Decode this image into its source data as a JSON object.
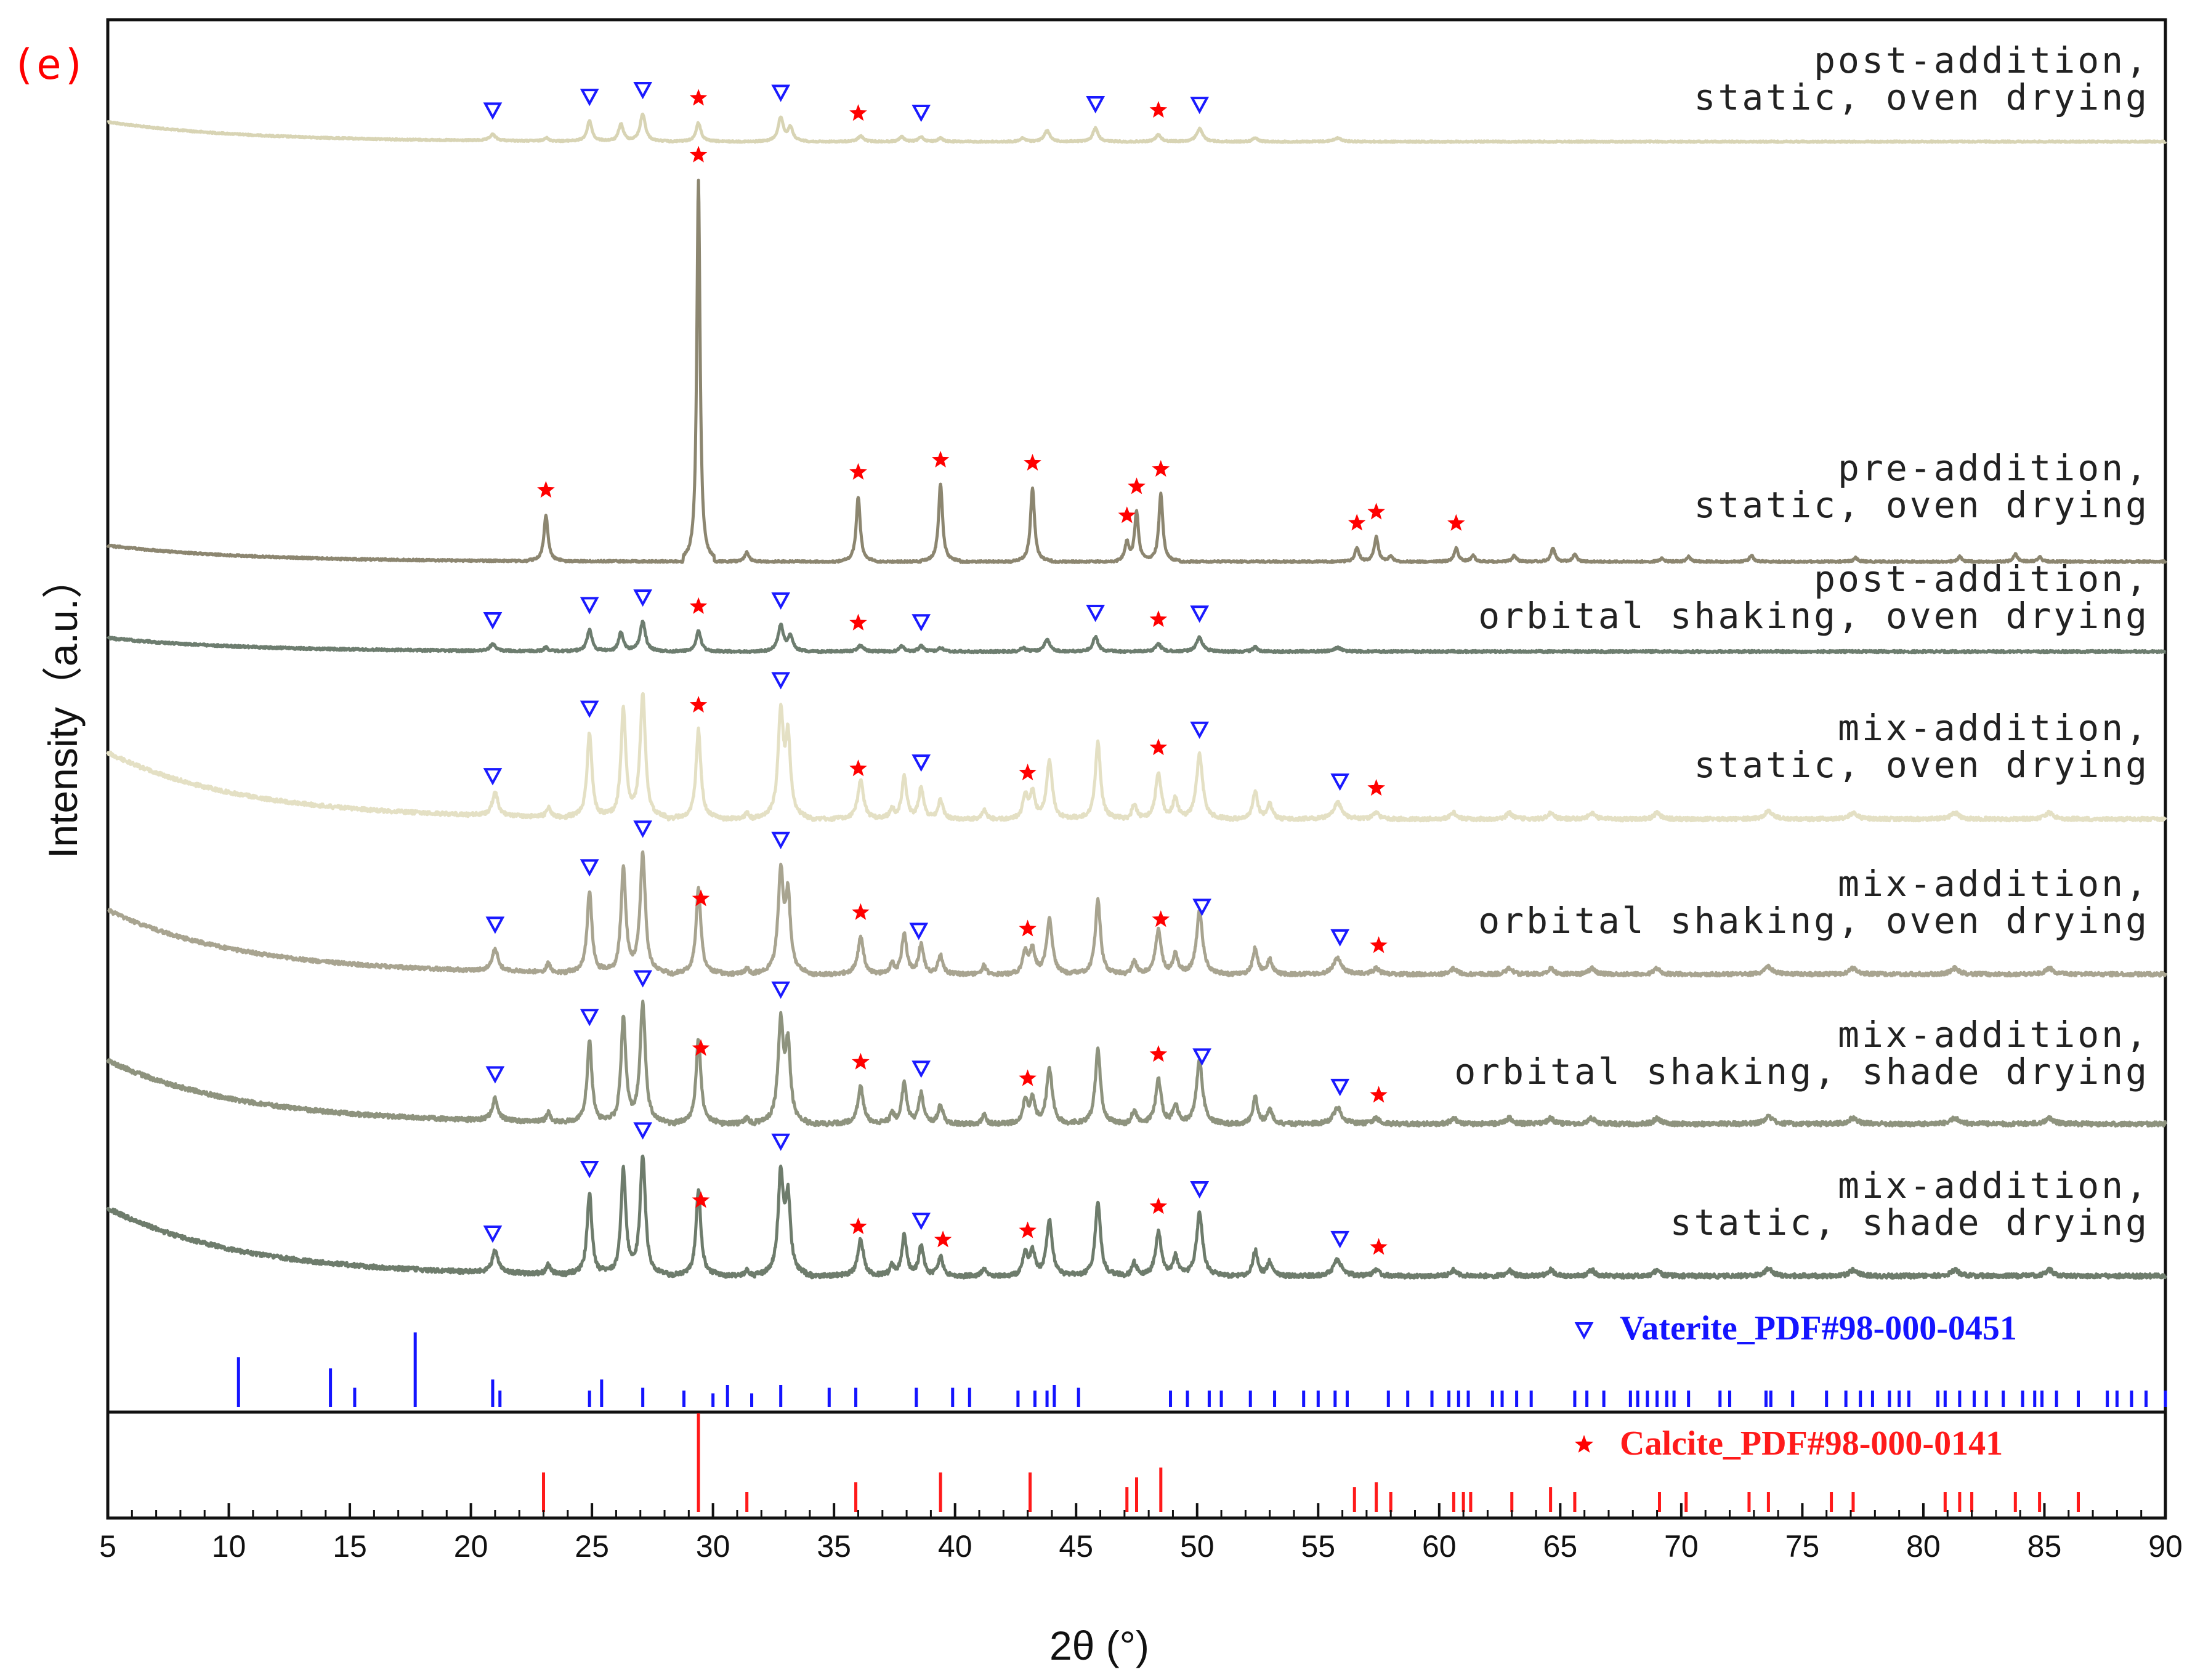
{
  "panel_label": "(e)",
  "chart_data": {
    "type": "line",
    "title": "",
    "xlabel": "2θ (°)",
    "ylabel": "Intensity（a.u.）",
    "xlim": [
      5,
      90
    ],
    "x_ticks": [
      5,
      10,
      15,
      20,
      25,
      30,
      35,
      40,
      45,
      50,
      55,
      60,
      65,
      70,
      75,
      80,
      85,
      90
    ],
    "series": [
      {
        "name": "post-addition, static, oven drying",
        "label_line1": "post-addition,",
        "label_line2": "static, oven drying",
        "color": "#d8d4b4",
        "markers": {
          "vaterite": [
            20.9,
            24.9,
            27.1,
            32.8,
            38.6,
            45.8,
            50.1
          ],
          "calcite": [
            29.4,
            36.0,
            48.4
          ]
        }
      },
      {
        "name": "pre-addition, static, oven drying",
        "label_line1": "pre-addition,",
        "label_line2": "static, oven drying",
        "color": "#8c8670",
        "markers": {
          "vaterite": [],
          "calcite": [
            23.1,
            29.4,
            36.0,
            39.4,
            43.2,
            47.1,
            47.5,
            48.5,
            56.6,
            57.4,
            60.7
          ]
        }
      },
      {
        "name": "post-addition, orbital shaking, oven drying",
        "label_line1": "post-addition,",
        "label_line2": "orbital shaking, oven drying",
        "color": "#6d7d6f",
        "markers": {
          "vaterite": [
            20.9,
            24.9,
            27.1,
            32.8,
            38.6,
            45.8,
            50.1
          ],
          "calcite": [
            29.4,
            36.0,
            48.4
          ]
        }
      },
      {
        "name": "mix-addition, static, oven drying",
        "label_line1": "mix-addition,",
        "label_line2": "static, oven drying",
        "color": "#e4e0c4",
        "markers": {
          "vaterite": [
            20.9,
            24.9,
            32.8,
            38.6,
            50.1,
            55.9
          ],
          "calcite": [
            29.4,
            36.0,
            43.0,
            48.4,
            57.4
          ]
        }
      },
      {
        "name": "mix-addition, orbital shaking, oven drying",
        "label_line1": "mix-addition,",
        "label_line2": "orbital shaking, oven drying",
        "color": "#a8a490",
        "markers": {
          "vaterite": [
            21.0,
            24.9,
            27.1,
            32.8,
            38.5,
            50.2,
            55.9
          ],
          "calcite": [
            29.5,
            36.1,
            43.0,
            48.5,
            57.5
          ]
        }
      },
      {
        "name": "mix-addition, orbital shaking, shade drying",
        "label_line1": "mix-addition,",
        "label_line2": "orbital shaking, shade drying",
        "color": "#8e937e",
        "markers": {
          "vaterite": [
            21.0,
            24.9,
            27.1,
            32.8,
            38.6,
            50.2,
            55.9
          ],
          "calcite": [
            29.5,
            36.1,
            43.0,
            48.4,
            57.5
          ]
        }
      },
      {
        "name": "mix-addition, static, shade drying",
        "label_line1": "mix-addition,",
        "label_line2": "static, shade drying",
        "color": "#6e7c6c",
        "markers": {
          "vaterite": [
            20.9,
            24.9,
            27.1,
            32.8,
            38.6,
            50.1,
            55.9
          ],
          "calcite": [
            29.5,
            36.0,
            39.5,
            43.0,
            48.4,
            57.5
          ]
        }
      }
    ],
    "reference_patterns": [
      {
        "name": "Vaterite_PDF#98-000-0451",
        "color": "#1414ff",
        "peaks": [
          [
            10.4,
            0.9
          ],
          [
            14.2,
            0.7
          ],
          [
            15.2,
            0.35
          ],
          [
            17.7,
            1.35
          ],
          [
            20.9,
            0.5
          ],
          [
            21.2,
            0.3
          ],
          [
            24.9,
            0.3
          ],
          [
            25.4,
            0.5
          ],
          [
            27.1,
            0.35
          ],
          [
            28.8,
            0.3
          ],
          [
            30.0,
            0.25
          ],
          [
            30.6,
            0.4
          ],
          [
            31.6,
            0.25
          ],
          [
            32.8,
            0.4
          ],
          [
            34.8,
            0.35
          ],
          [
            35.9,
            0.35
          ],
          [
            38.4,
            0.35
          ],
          [
            39.9,
            0.35
          ],
          [
            40.6,
            0.35
          ],
          [
            42.6,
            0.3
          ],
          [
            43.3,
            0.3
          ],
          [
            43.8,
            0.3
          ],
          [
            44.1,
            0.4
          ],
          [
            45.1,
            0.35
          ],
          [
            48.9,
            0.3
          ],
          [
            49.6,
            0.3
          ],
          [
            50.5,
            0.3
          ],
          [
            51.0,
            0.3
          ],
          [
            52.2,
            0.3
          ],
          [
            53.2,
            0.3
          ],
          [
            54.4,
            0.3
          ],
          [
            55.0,
            0.3
          ],
          [
            55.7,
            0.3
          ],
          [
            56.2,
            0.3
          ],
          [
            57.9,
            0.3
          ],
          [
            58.7,
            0.3
          ],
          [
            59.7,
            0.3
          ],
          [
            60.4,
            0.3
          ],
          [
            60.8,
            0.3
          ],
          [
            61.2,
            0.3
          ],
          [
            62.2,
            0.3
          ],
          [
            62.6,
            0.3
          ],
          [
            63.2,
            0.3
          ],
          [
            63.8,
            0.3
          ],
          [
            65.6,
            0.3
          ],
          [
            66.1,
            0.3
          ],
          [
            66.8,
            0.3
          ],
          [
            67.9,
            0.3
          ],
          [
            68.2,
            0.3
          ],
          [
            68.6,
            0.3
          ],
          [
            69.0,
            0.3
          ],
          [
            69.4,
            0.3
          ],
          [
            69.7,
            0.3
          ],
          [
            70.3,
            0.3
          ],
          [
            71.6,
            0.3
          ],
          [
            72.0,
            0.3
          ],
          [
            73.5,
            0.3
          ],
          [
            73.7,
            0.3
          ],
          [
            74.6,
            0.3
          ],
          [
            76.0,
            0.3
          ],
          [
            76.8,
            0.3
          ],
          [
            77.4,
            0.3
          ],
          [
            77.9,
            0.3
          ],
          [
            78.6,
            0.3
          ],
          [
            79.0,
            0.3
          ],
          [
            79.4,
            0.3
          ],
          [
            80.6,
            0.3
          ],
          [
            80.9,
            0.3
          ],
          [
            81.5,
            0.3
          ],
          [
            82.1,
            0.3
          ],
          [
            82.6,
            0.3
          ],
          [
            83.3,
            0.3
          ],
          [
            84.1,
            0.3
          ],
          [
            84.6,
            0.3
          ],
          [
            84.9,
            0.3
          ],
          [
            85.5,
            0.3
          ],
          [
            86.4,
            0.3
          ],
          [
            87.6,
            0.3
          ],
          [
            88.0,
            0.3
          ],
          [
            88.6,
            0.3
          ],
          [
            89.2,
            0.3
          ],
          [
            90.0,
            0.3
          ]
        ]
      },
      {
        "name": "Calcite_PDF#98-000-0141",
        "color": "#ff1a1a",
        "peaks": [
          [
            23.0,
            0.4
          ],
          [
            29.4,
            1.0
          ],
          [
            31.4,
            0.2
          ],
          [
            35.9,
            0.3
          ],
          [
            39.4,
            0.4
          ],
          [
            43.1,
            0.4
          ],
          [
            47.1,
            0.25
          ],
          [
            47.5,
            0.35
          ],
          [
            48.5,
            0.45
          ],
          [
            56.5,
            0.25
          ],
          [
            57.4,
            0.3
          ],
          [
            58.0,
            0.2
          ],
          [
            60.6,
            0.2
          ],
          [
            61.0,
            0.2
          ],
          [
            61.3,
            0.2
          ],
          [
            63.0,
            0.2
          ],
          [
            64.6,
            0.25
          ],
          [
            65.6,
            0.2
          ],
          [
            69.1,
            0.2
          ],
          [
            70.2,
            0.2
          ],
          [
            72.8,
            0.2
          ],
          [
            73.6,
            0.2
          ],
          [
            76.2,
            0.2
          ],
          [
            77.1,
            0.2
          ],
          [
            80.9,
            0.2
          ],
          [
            81.5,
            0.2
          ],
          [
            82.0,
            0.2
          ],
          [
            83.8,
            0.2
          ],
          [
            84.8,
            0.2
          ],
          [
            86.4,
            0.2
          ]
        ]
      }
    ]
  }
}
